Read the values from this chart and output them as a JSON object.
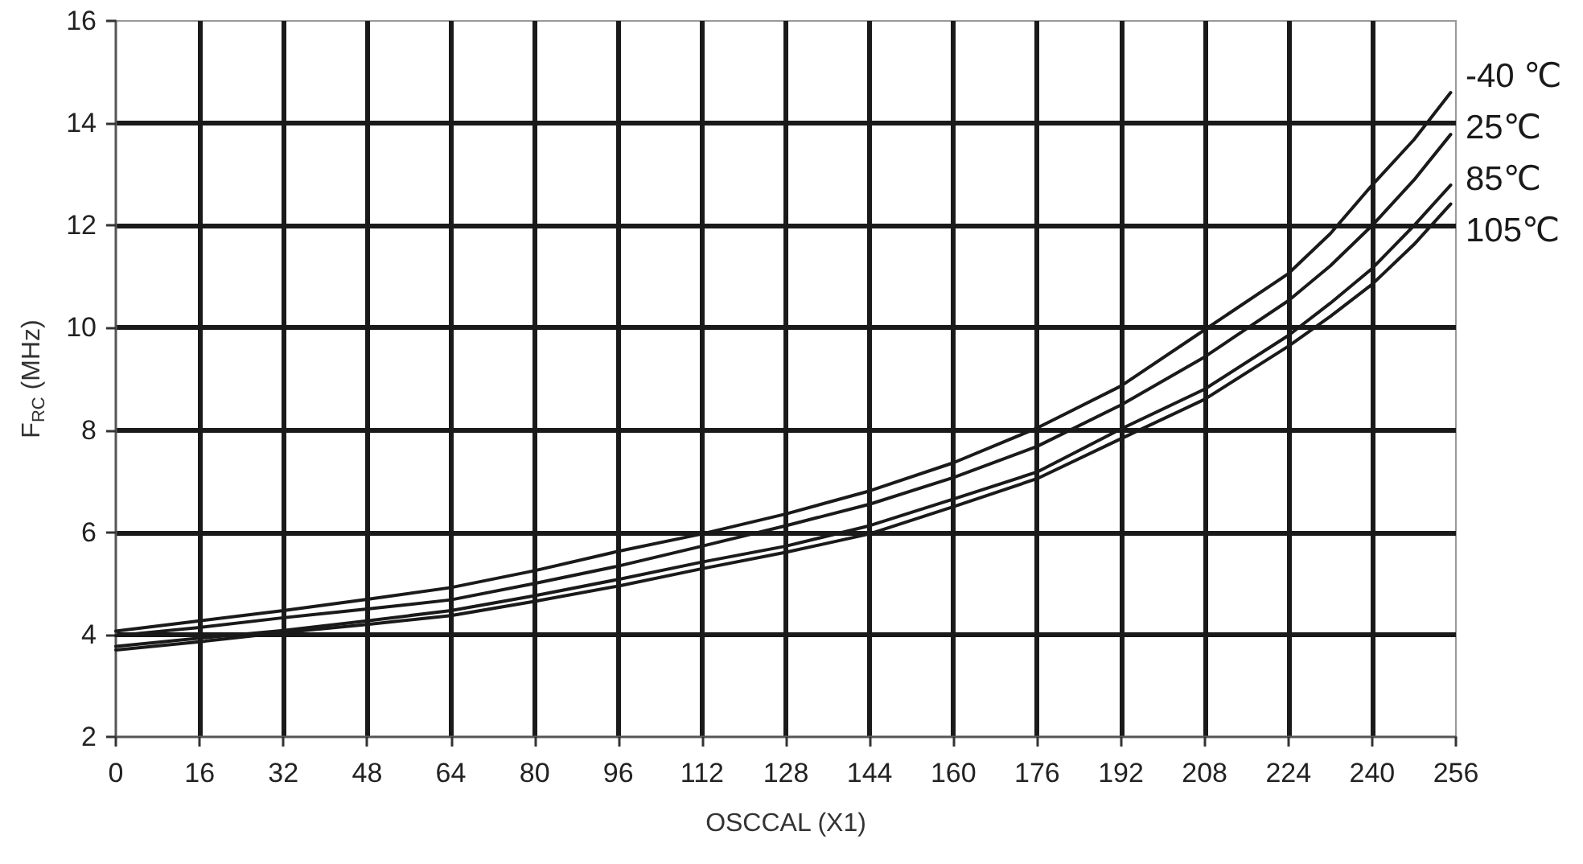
{
  "chart_data": {
    "type": "line",
    "xlabel": "OSCCAL (X1)",
    "ylabel": "F$_{RC}$ (MHz)",
    "x": [
      0,
      16,
      32,
      48,
      64,
      80,
      96,
      112,
      128,
      144,
      160,
      176,
      192,
      208,
      224,
      232,
      240,
      248,
      255
    ],
    "series": [
      {
        "name": "-40 ℃",
        "color": "#1a1a1a",
        "values": [
          4.07,
          4.27,
          4.47,
          4.69,
          4.92,
          5.25,
          5.63,
          5.97,
          6.36,
          6.81,
          7.36,
          8.04,
          8.86,
          9.96,
          11.06,
          11.84,
          12.79,
          13.68,
          14.6
        ]
      },
      {
        "name": "25℃",
        "color": "#1a1a1a",
        "values": [
          3.98,
          4.14,
          4.33,
          4.5,
          4.68,
          5.0,
          5.34,
          5.73,
          6.13,
          6.55,
          7.07,
          7.68,
          8.49,
          9.43,
          10.53,
          11.21,
          12.0,
          12.89,
          13.78
        ]
      },
      {
        "name": "85℃",
        "color": "#1a1a1a",
        "values": [
          3.77,
          3.93,
          4.08,
          4.27,
          4.47,
          4.76,
          5.08,
          5.42,
          5.73,
          6.13,
          6.65,
          7.18,
          8.02,
          8.8,
          9.85,
          10.48,
          11.16,
          12.0,
          12.79
        ]
      },
      {
        "name": "105℃",
        "color": "#1a1a1a",
        "values": [
          3.7,
          3.86,
          4.04,
          4.2,
          4.37,
          4.65,
          4.95,
          5.29,
          5.61,
          5.97,
          6.5,
          7.05,
          7.83,
          8.6,
          9.64,
          10.22,
          10.85,
          11.63,
          12.42
        ]
      }
    ],
    "xlim": [
      0,
      256
    ],
    "xticks": [
      0,
      16,
      32,
      48,
      64,
      80,
      96,
      112,
      128,
      144,
      160,
      176,
      192,
      208,
      224,
      240,
      256
    ],
    "ylim": [
      2,
      16
    ],
    "yticks": [
      2,
      4,
      6,
      8,
      10,
      12,
      14,
      16
    ],
    "grid": true,
    "marker": "none",
    "line_style": "solid"
  }
}
